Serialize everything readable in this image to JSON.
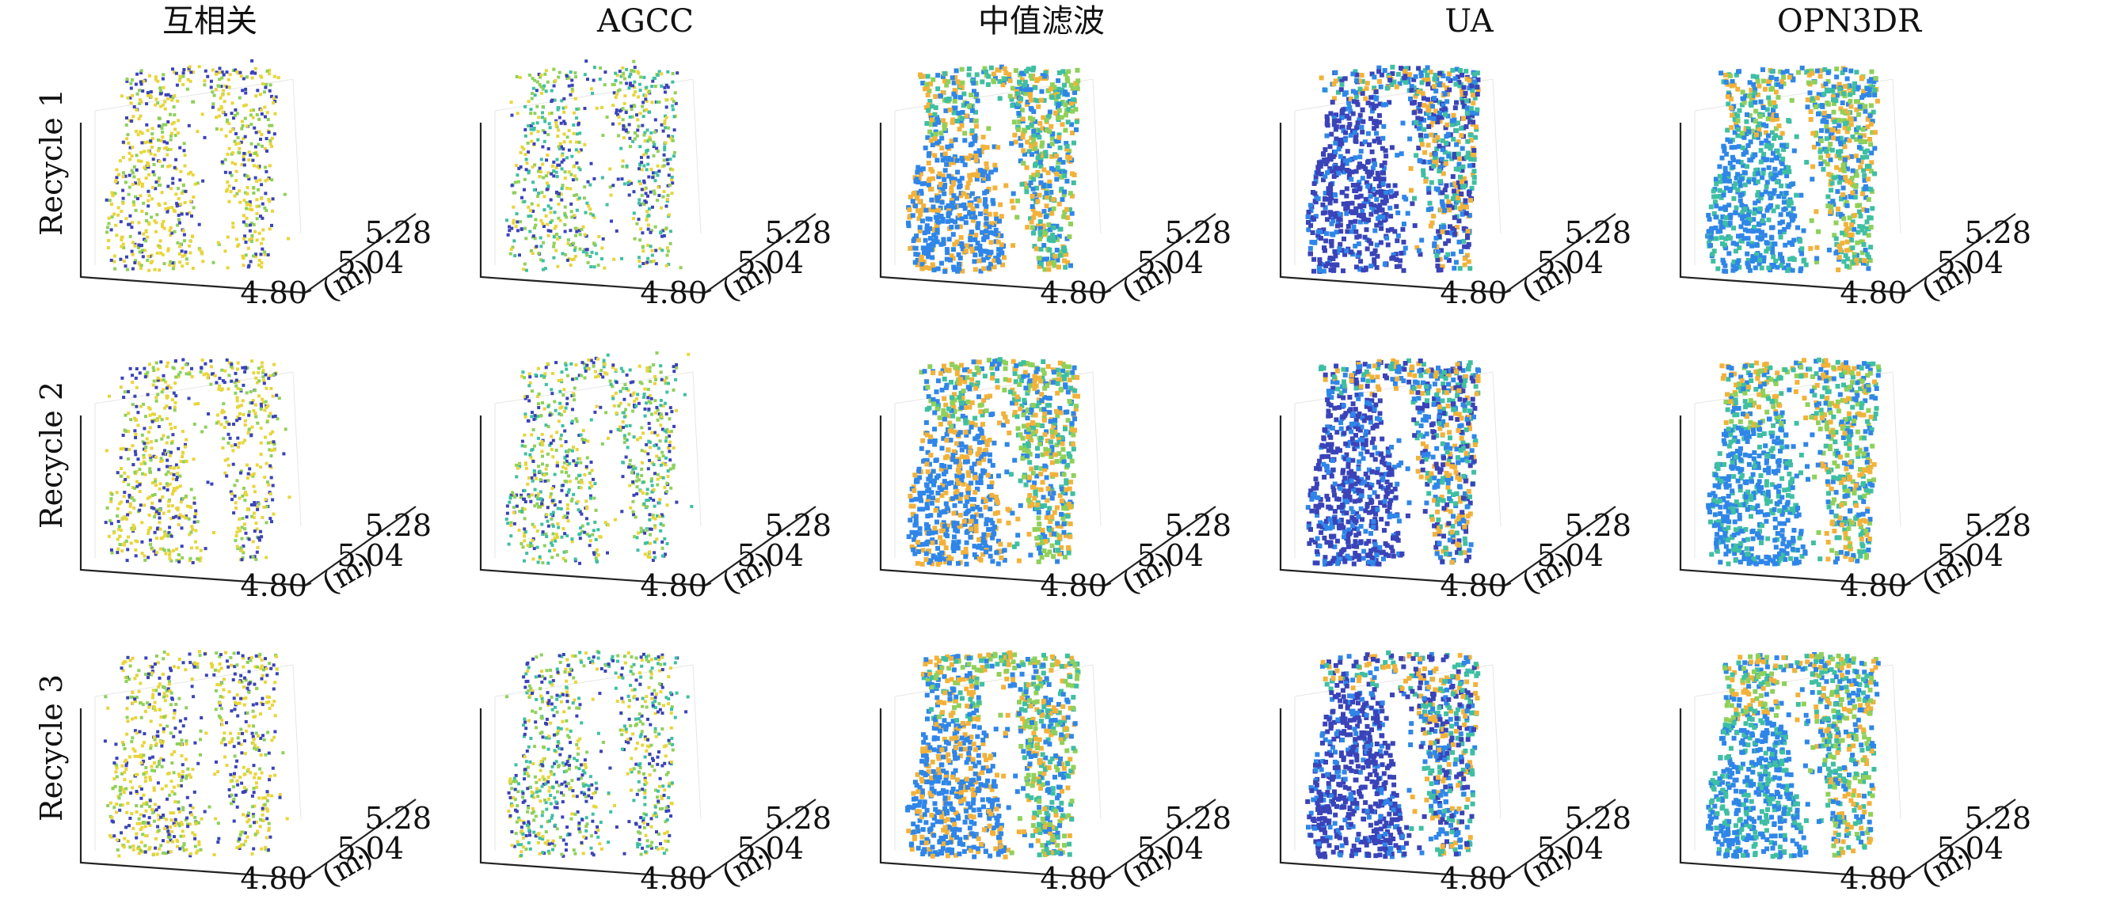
{
  "chart_data": {
    "type": "scatter",
    "columns": [
      "互相关",
      "AGCC",
      "中值滤波",
      "UA",
      "OPN3DR"
    ],
    "rows": [
      "Recycle 1",
      "Recycle 2",
      "Recycle 3"
    ],
    "depth_axis": {
      "tick_labels": [
        "4.80",
        "5.04",
        "5.28"
      ],
      "values": [
        4.8,
        5.04,
        5.28
      ],
      "unit": "(m)"
    },
    "grid": false,
    "legend": "none",
    "colors": {
      "yellow": "#e8d53a",
      "blue": "#3a43b8",
      "teal": "#3fbfa2",
      "green": "#8fd05a",
      "orange": "#f2b23a",
      "light_blue": "#2f86e8"
    }
  }
}
